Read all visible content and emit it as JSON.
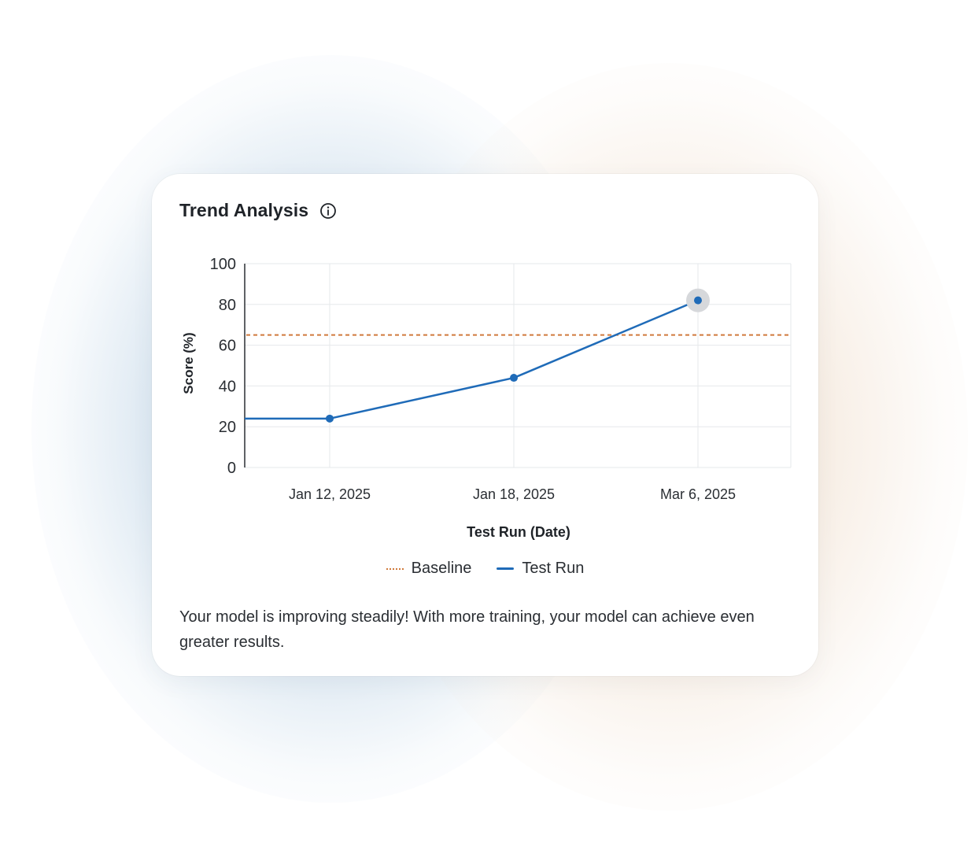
{
  "card": {
    "title": "Trend Analysis",
    "info_icon": "info-circle-icon",
    "summary": "Your model is improving steadily! With more training, your model can achieve even greater results."
  },
  "chart_data": {
    "type": "line",
    "title": "Trend Analysis",
    "xlabel": "Test Run (Date)",
    "ylabel": "Score (%)",
    "ylim": [
      0,
      100
    ],
    "yticks": [
      0,
      20,
      40,
      60,
      80,
      100
    ],
    "categories": [
      "Jan 12, 2025",
      "Jan 18, 2025",
      "Mar 6, 2025"
    ],
    "series": [
      {
        "name": "Test Run",
        "color": "#1f6bb8",
        "values": [
          24,
          44,
          82
        ],
        "line_start_value": 24
      }
    ],
    "reference_lines": [
      {
        "name": "Baseline",
        "value": 65,
        "color": "#d07a3c",
        "style": "dashed"
      }
    ],
    "highlighted_point": "Mar 6, 2025",
    "grid": true,
    "legend": {
      "position": "bottom",
      "entries": [
        "Baseline",
        "Test Run"
      ]
    }
  }
}
